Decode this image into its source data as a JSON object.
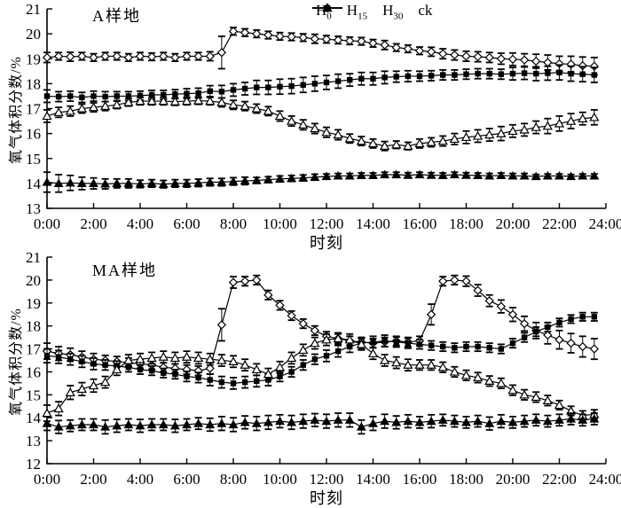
{
  "figure": {
    "background": "#ffffff",
    "ink": "#000000"
  },
  "legend": {
    "position": "top-right-outside-plot",
    "items": [
      {
        "base": "H",
        "sub": "0",
        "marker": "diamond-open"
      },
      {
        "base": "H",
        "sub": "15",
        "marker": "square-filled"
      },
      {
        "base": "H",
        "sub": "30",
        "marker": "triangle-open"
      },
      {
        "base": "ck",
        "sub": "",
        "marker": "triangle-filled"
      }
    ]
  },
  "chart_data": [
    {
      "type": "line",
      "title": "A样地",
      "xlabel": "时刻",
      "ylabel": "氧气体积分数/%",
      "xlim": [
        0,
        24
      ],
      "ylim": [
        13,
        21
      ],
      "grid": false,
      "x_interval_minutes": 30,
      "x_start": 0,
      "x_step": 0.5,
      "x_tick_hours": [
        0,
        2,
        4,
        6,
        8,
        10,
        12,
        14,
        16,
        18,
        20,
        22,
        24
      ],
      "x_tick_labels": [
        "0:00",
        "2:00",
        "4:00",
        "6:00",
        "8:00",
        "10:00",
        "12:00",
        "14:00",
        "16:00",
        "18:00",
        "20:00",
        "22:00",
        "24:00"
      ],
      "y_ticks": [
        13,
        14,
        15,
        16,
        17,
        18,
        19,
        20,
        21
      ],
      "series": [
        {
          "name": "H0",
          "marker": "diamond-open",
          "values": [
            19.05,
            19.1,
            19.08,
            19.1,
            19.05,
            19.1,
            19.1,
            19.05,
            19.1,
            19.08,
            19.1,
            19.05,
            19.1,
            19.1,
            19.1,
            19.25,
            20.1,
            20.05,
            20.0,
            19.95,
            19.9,
            19.88,
            19.85,
            19.8,
            19.78,
            19.75,
            19.72,
            19.7,
            19.62,
            19.55,
            19.45,
            19.4,
            19.32,
            19.28,
            19.2,
            19.15,
            19.1,
            19.08,
            19.05,
            19.0,
            18.98,
            18.95,
            18.9,
            18.85,
            18.8,
            18.78,
            18.72,
            18.7
          ],
          "errors": [
            0.2,
            0.15,
            0.18,
            0.15,
            0.15,
            0.15,
            0.15,
            0.15,
            0.15,
            0.15,
            0.15,
            0.15,
            0.15,
            0.15,
            0.18,
            0.65,
            0.15,
            0.15,
            0.15,
            0.15,
            0.15,
            0.15,
            0.15,
            0.18,
            0.15,
            0.15,
            0.15,
            0.15,
            0.15,
            0.18,
            0.15,
            0.15,
            0.15,
            0.18,
            0.2,
            0.2,
            0.2,
            0.2,
            0.2,
            0.22,
            0.25,
            0.25,
            0.28,
            0.3,
            0.3,
            0.32,
            0.35,
            0.35
          ]
        },
        {
          "name": "H15",
          "marker": "square-filled",
          "values": [
            17.5,
            17.48,
            17.5,
            17.45,
            17.5,
            17.48,
            17.5,
            17.5,
            17.52,
            17.55,
            17.55,
            17.58,
            17.6,
            17.62,
            17.7,
            17.68,
            17.75,
            17.8,
            17.85,
            17.85,
            17.88,
            17.9,
            17.95,
            18.0,
            18.05,
            18.1,
            18.15,
            18.2,
            18.2,
            18.25,
            18.28,
            18.3,
            18.3,
            18.32,
            18.35,
            18.35,
            18.38,
            18.4,
            18.4,
            18.38,
            18.4,
            18.42,
            18.4,
            18.42,
            18.45,
            18.4,
            18.38,
            18.35
          ],
          "errors": [
            0.25,
            0.2,
            0.2,
            0.2,
            0.2,
            0.2,
            0.18,
            0.18,
            0.18,
            0.18,
            0.18,
            0.18,
            0.2,
            0.2,
            0.22,
            0.25,
            0.25,
            0.25,
            0.28,
            0.28,
            0.3,
            0.3,
            0.3,
            0.3,
            0.28,
            0.28,
            0.25,
            0.25,
            0.25,
            0.25,
            0.22,
            0.22,
            0.2,
            0.2,
            0.2,
            0.2,
            0.2,
            0.2,
            0.2,
            0.2,
            0.25,
            0.25,
            0.28,
            0.28,
            0.3,
            0.3,
            0.3,
            0.3
          ]
        },
        {
          "name": "H30",
          "marker": "triangle-open",
          "values": [
            16.7,
            16.85,
            16.9,
            17.0,
            17.05,
            17.1,
            17.15,
            17.25,
            17.3,
            17.3,
            17.3,
            17.28,
            17.3,
            17.32,
            17.3,
            17.25,
            17.15,
            17.1,
            17.0,
            16.9,
            16.7,
            16.5,
            16.35,
            16.2,
            16.05,
            15.95,
            15.8,
            15.7,
            15.6,
            15.5,
            15.55,
            15.5,
            15.6,
            15.65,
            15.7,
            15.78,
            15.85,
            15.9,
            15.95,
            16.0,
            16.1,
            16.15,
            16.25,
            16.3,
            16.4,
            16.5,
            16.6,
            16.65
          ],
          "errors": [
            0.25,
            0.2,
            0.2,
            0.18,
            0.18,
            0.18,
            0.15,
            0.15,
            0.15,
            0.15,
            0.15,
            0.15,
            0.15,
            0.15,
            0.15,
            0.18,
            0.18,
            0.18,
            0.18,
            0.18,
            0.2,
            0.2,
            0.2,
            0.2,
            0.2,
            0.2,
            0.18,
            0.18,
            0.18,
            0.18,
            0.15,
            0.15,
            0.18,
            0.18,
            0.2,
            0.22,
            0.25,
            0.25,
            0.25,
            0.28,
            0.25,
            0.25,
            0.25,
            0.3,
            0.3,
            0.3,
            0.25,
            0.3
          ]
        },
        {
          "name": "ck",
          "marker": "triangle-filled",
          "values": [
            14.05,
            14.0,
            14.02,
            14.0,
            14.0,
            13.98,
            14.0,
            14.0,
            13.98,
            14.0,
            13.97,
            14.0,
            14.0,
            14.02,
            14.05,
            14.05,
            14.08,
            14.1,
            14.12,
            14.15,
            14.18,
            14.2,
            14.22,
            14.25,
            14.28,
            14.3,
            14.3,
            14.32,
            14.32,
            14.35,
            14.35,
            14.33,
            14.35,
            14.33,
            14.32,
            14.35,
            14.33,
            14.32,
            14.3,
            14.32,
            14.3,
            14.3,
            14.28,
            14.3,
            14.3,
            14.28,
            14.3,
            14.3
          ],
          "errors": [
            0.4,
            0.35,
            0.3,
            0.25,
            0.22,
            0.2,
            0.18,
            0.18,
            0.15,
            0.15,
            0.15,
            0.15,
            0.15,
            0.15,
            0.15,
            0.15,
            0.15,
            0.15,
            0.12,
            0.12,
            0.12,
            0.12,
            0.12,
            0.12,
            0.1,
            0.1,
            0.1,
            0.1,
            0.1,
            0.1,
            0.1,
            0.1,
            0.1,
            0.1,
            0.1,
            0.1,
            0.1,
            0.1,
            0.1,
            0.1,
            0.1,
            0.1,
            0.08,
            0.08,
            0.08,
            0.08,
            0.08,
            0.08
          ]
        }
      ]
    },
    {
      "type": "line",
      "title": "MA样地",
      "xlabel": "时刻",
      "ylabel": "氧气体积分数/%",
      "xlim": [
        0,
        24
      ],
      "ylim": [
        12,
        21
      ],
      "grid": false,
      "x_interval_minutes": 30,
      "x_start": 0,
      "x_step": 0.5,
      "x_tick_hours": [
        0,
        2,
        4,
        6,
        8,
        10,
        12,
        14,
        16,
        18,
        20,
        22,
        24
      ],
      "x_tick_labels": [
        "0:00",
        "2:00",
        "4:00",
        "6:00",
        "8:00",
        "10:00",
        "12:00",
        "14:00",
        "16:00",
        "18:00",
        "20:00",
        "22:00",
        "24:00"
      ],
      "y_ticks": [
        12,
        13,
        14,
        15,
        16,
        17,
        18,
        19,
        20,
        21
      ],
      "series": [
        {
          "name": "H0",
          "marker": "diamond-open",
          "values": [
            16.9,
            16.8,
            16.75,
            16.65,
            16.55,
            16.5,
            16.45,
            16.4,
            16.35,
            16.3,
            16.2,
            16.15,
            16.1,
            16.05,
            16.15,
            18.05,
            19.9,
            19.95,
            20.0,
            19.35,
            18.9,
            18.45,
            18.1,
            17.8,
            17.55,
            17.45,
            17.35,
            17.3,
            17.25,
            17.3,
            17.35,
            17.3,
            17.35,
            18.5,
            19.95,
            20.0,
            19.95,
            19.55,
            19.1,
            18.85,
            18.5,
            18.1,
            17.8,
            17.6,
            17.4,
            17.25,
            17.1,
            17.0
          ],
          "errors": [
            0.35,
            0.3,
            0.28,
            0.25,
            0.25,
            0.22,
            0.22,
            0.2,
            0.2,
            0.2,
            0.2,
            0.2,
            0.2,
            0.2,
            0.25,
            0.7,
            0.25,
            0.2,
            0.2,
            0.2,
            0.2,
            0.2,
            0.2,
            0.2,
            0.2,
            0.2,
            0.2,
            0.2,
            0.2,
            0.2,
            0.2,
            0.2,
            0.2,
            0.45,
            0.2,
            0.2,
            0.22,
            0.25,
            0.25,
            0.28,
            0.3,
            0.32,
            0.35,
            0.38,
            0.4,
            0.42,
            0.45,
            0.45
          ]
        },
        {
          "name": "H15",
          "marker": "square-filled",
          "values": [
            16.7,
            16.65,
            16.55,
            16.45,
            16.35,
            16.3,
            16.25,
            16.2,
            16.1,
            16.05,
            15.95,
            15.9,
            15.8,
            15.75,
            15.65,
            15.55,
            15.5,
            15.55,
            15.6,
            15.65,
            15.8,
            16.0,
            16.3,
            16.55,
            16.7,
            16.9,
            17.1,
            17.25,
            17.3,
            17.35,
            17.3,
            17.25,
            17.2,
            17.15,
            17.1,
            17.05,
            17.1,
            17.1,
            17.05,
            17.0,
            17.25,
            17.5,
            17.75,
            17.95,
            18.15,
            18.3,
            18.4,
            18.4
          ],
          "errors": [
            0.3,
            0.28,
            0.25,
            0.25,
            0.25,
            0.22,
            0.22,
            0.2,
            0.2,
            0.2,
            0.2,
            0.2,
            0.22,
            0.22,
            0.25,
            0.25,
            0.25,
            0.25,
            0.25,
            0.25,
            0.22,
            0.22,
            0.22,
            0.22,
            0.25,
            0.25,
            0.25,
            0.25,
            0.25,
            0.25,
            0.22,
            0.22,
            0.2,
            0.2,
            0.2,
            0.2,
            0.2,
            0.2,
            0.2,
            0.2,
            0.2,
            0.2,
            0.2,
            0.2,
            0.18,
            0.18,
            0.18,
            0.18
          ]
        },
        {
          "name": "H30",
          "marker": "triangle-open",
          "values": [
            14.2,
            14.4,
            15.1,
            15.25,
            15.4,
            15.55,
            16.1,
            16.5,
            16.55,
            16.6,
            16.65,
            16.6,
            16.65,
            16.6,
            16.55,
            16.5,
            16.45,
            16.3,
            16.1,
            15.9,
            16.2,
            16.6,
            16.95,
            17.25,
            17.4,
            17.45,
            17.4,
            17.2,
            16.8,
            16.5,
            16.4,
            16.3,
            16.3,
            16.3,
            16.2,
            16.0,
            15.85,
            15.75,
            15.6,
            15.5,
            15.2,
            15.0,
            14.9,
            14.75,
            14.55,
            14.3,
            14.1,
            14.15
          ],
          "errors": [
            0.35,
            0.3,
            0.3,
            0.28,
            0.28,
            0.25,
            0.25,
            0.25,
            0.25,
            0.25,
            0.25,
            0.25,
            0.25,
            0.25,
            0.25,
            0.25,
            0.25,
            0.25,
            0.25,
            0.25,
            0.25,
            0.25,
            0.25,
            0.25,
            0.25,
            0.25,
            0.25,
            0.25,
            0.25,
            0.25,
            0.25,
            0.25,
            0.22,
            0.22,
            0.22,
            0.22,
            0.22,
            0.22,
            0.22,
            0.22,
            0.22,
            0.22,
            0.22,
            0.22,
            0.2,
            0.2,
            0.2,
            0.2
          ]
        },
        {
          "name": "ck",
          "marker": "triangle-filled",
          "values": [
            13.75,
            13.6,
            13.65,
            13.7,
            13.7,
            13.6,
            13.65,
            13.7,
            13.65,
            13.7,
            13.7,
            13.65,
            13.7,
            13.75,
            13.7,
            13.75,
            13.7,
            13.8,
            13.75,
            13.8,
            13.85,
            13.8,
            13.85,
            13.9,
            13.85,
            13.9,
            13.9,
            13.6,
            13.75,
            13.85,
            13.8,
            13.85,
            13.8,
            13.85,
            13.9,
            13.85,
            13.8,
            13.85,
            13.75,
            13.85,
            13.8,
            13.85,
            13.9,
            13.85,
            13.9,
            13.95,
            13.9,
            13.95
          ],
          "errors": [
            0.3,
            0.28,
            0.25,
            0.25,
            0.25,
            0.3,
            0.28,
            0.25,
            0.28,
            0.25,
            0.25,
            0.28,
            0.25,
            0.25,
            0.28,
            0.3,
            0.3,
            0.28,
            0.3,
            0.3,
            0.28,
            0.3,
            0.3,
            0.28,
            0.3,
            0.3,
            0.3,
            0.3,
            0.3,
            0.3,
            0.28,
            0.28,
            0.25,
            0.28,
            0.25,
            0.25,
            0.25,
            0.25,
            0.28,
            0.28,
            0.25,
            0.25,
            0.25,
            0.25,
            0.25,
            0.25,
            0.25,
            0.25
          ]
        }
      ]
    }
  ]
}
